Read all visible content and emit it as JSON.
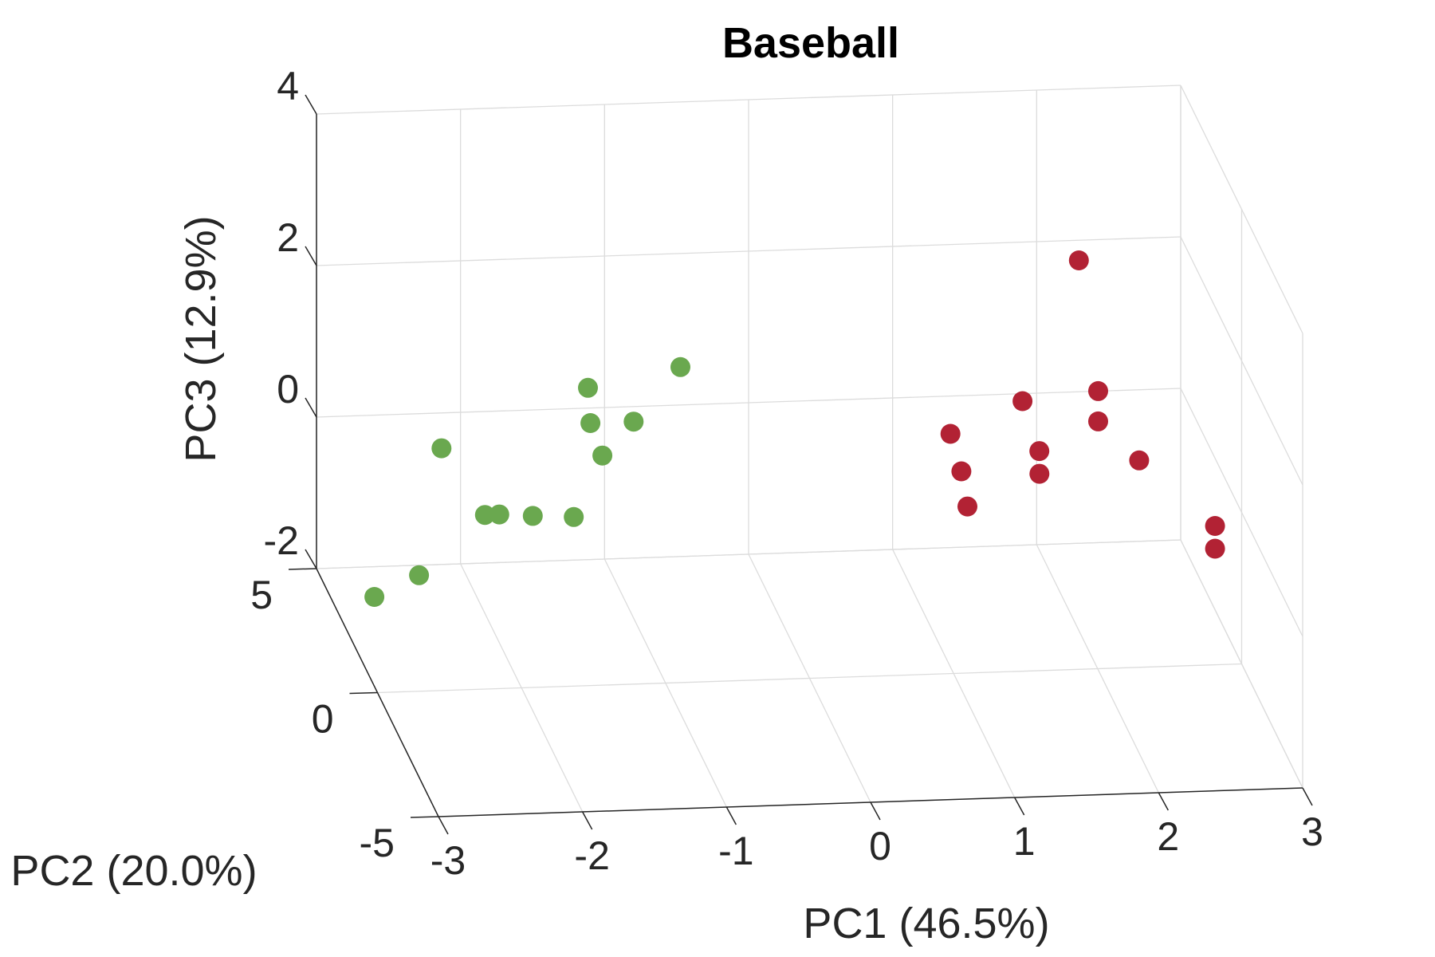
{
  "chart_data": {
    "type": "scatter",
    "title": "Baseball",
    "xlabel": "PC1 (46.5%)",
    "ylabel": "PC2 (20.0%)",
    "zlabel": "PC3 (12.9%)",
    "x_ticks": [
      "-3",
      "-2",
      "-1",
      "0",
      "1",
      "2",
      "3"
    ],
    "y_ticks": [
      "-5",
      "0",
      "5"
    ],
    "z_ticks": [
      "-2",
      "0",
      "2",
      "4"
    ],
    "xlim": [
      -3,
      3
    ],
    "ylim": [
      -5,
      5
    ],
    "zlim": [
      -2,
      4
    ],
    "grid": true,
    "series": [
      {
        "color": "#6aa84f",
        "points": [
          {
            "x": -2.7,
            "y": 3.8,
            "z": -2.0
          },
          {
            "x": -2.5,
            "y": 2.5,
            "z": -1.3
          },
          {
            "x": -2.2,
            "y": 4.2,
            "z": -0.2
          },
          {
            "x": -2.0,
            "y": 3.0,
            "z": -0.7
          },
          {
            "x": -1.9,
            "y": 3.0,
            "z": -0.7
          },
          {
            "x": -1.6,
            "y": 3.8,
            "z": -1.0
          },
          {
            "x": -1.4,
            "y": 2.8,
            "z": -0.7
          },
          {
            "x": -1.2,
            "y": 4.0,
            "z": 0.6
          },
          {
            "x": -1.1,
            "y": 4.0,
            "z": -0.3
          },
          {
            "x": -1.2,
            "y": 3.8,
            "z": 0.2
          },
          {
            "x": -0.9,
            "y": 3.8,
            "z": 0.2
          },
          {
            "x": -0.6,
            "y": 3.5,
            "z": 1.0
          }
        ]
      },
      {
        "color": "#b22234",
        "points": [
          {
            "x": 1.35,
            "y": 3.5,
            "z": -0.5
          },
          {
            "x": 1.35,
            "y": 3.0,
            "z": -0.8
          },
          {
            "x": 1.3,
            "y": 3.8,
            "z": -0.1
          },
          {
            "x": 1.8,
            "y": 3.8,
            "z": 0.3
          },
          {
            "x": 1.9,
            "y": 3.6,
            "z": -0.3
          },
          {
            "x": 1.85,
            "y": 3.0,
            "z": -0.4
          },
          {
            "x": 2.2,
            "y": 3.9,
            "z": 2.1
          },
          {
            "x": 2.3,
            "y": 3.5,
            "z": 0.5
          },
          {
            "x": 2.3,
            "y": 3.5,
            "z": 0.1
          },
          {
            "x": 2.5,
            "y": 2.5,
            "z": -0.1
          },
          {
            "x": 2.9,
            "y": 1.0,
            "z": -0.5
          },
          {
            "x": 2.9,
            "y": 1.0,
            "z": -0.8
          }
        ]
      }
    ]
  }
}
